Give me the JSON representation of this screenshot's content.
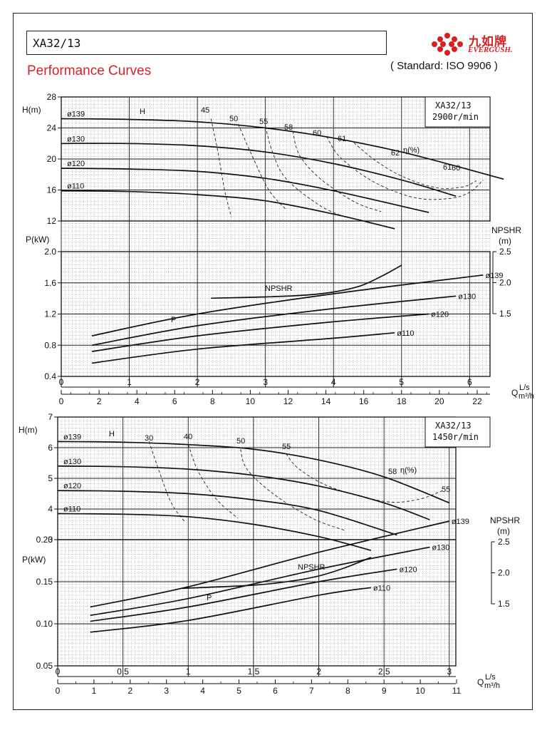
{
  "header": {
    "model": "XA32/13",
    "logo_cn": "九如牌",
    "logo_en": "EVERGUSH.",
    "title": "Performance Curves",
    "standard": "( Standard: ISO 9906 )"
  },
  "colors": {
    "title_red": "#d8202a",
    "logo_red": "#d81e1e",
    "ink": "#111111"
  },
  "chart_data": [
    {
      "type": "line",
      "title": "XA32/13",
      "subtitle": "2900r/min",
      "grid": true,
      "x_axis_ls": {
        "label": "L/s",
        "ticks": [
          "0",
          "1",
          "2",
          "3",
          "4",
          "5",
          "6"
        ],
        "range": [
          0,
          6.3
        ]
      },
      "x_axis_m3h": {
        "label": "m³/h",
        "ticks": [
          "0",
          "2",
          "4",
          "6",
          "8",
          "10",
          "12",
          "14",
          "16",
          "18",
          "20",
          "22"
        ]
      },
      "q_label": "Q",
      "head_panel": {
        "ylabel": "H(m)",
        "ylim": [
          12,
          28
        ],
        "yticks": [
          "12",
          "16",
          "20",
          "24",
          "28"
        ],
        "curve_label": "H",
        "series": [
          {
            "name": "ø139",
            "x": [
              0.0,
              1.0,
              2.0,
              3.0,
              4.0,
              5.0,
              6.0,
              6.5
            ],
            "y": [
              25.2,
              25.1,
              24.8,
              24.0,
              22.7,
              20.9,
              18.6,
              17.4
            ]
          },
          {
            "name": "ø130",
            "x": [
              0.0,
              1.0,
              2.0,
              3.0,
              4.0,
              5.0,
              5.8
            ],
            "y": [
              22.0,
              22.0,
              21.7,
              20.9,
              19.4,
              17.3,
              15.2
            ]
          },
          {
            "name": "ø120",
            "x": [
              0.0,
              1.0,
              2.0,
              3.0,
              4.0,
              5.4
            ],
            "y": [
              18.8,
              18.7,
              18.4,
              17.5,
              15.9,
              13.1
            ]
          },
          {
            "name": "ø110",
            "x": [
              0.0,
              1.0,
              2.0,
              3.0,
              4.0,
              4.9
            ],
            "y": [
              15.9,
              15.8,
              15.4,
              14.6,
              12.9,
              11.0
            ]
          }
        ],
        "efficiency_labels": [
          "45",
          "50",
          "55",
          "58",
          "60",
          "61",
          "62",
          "61",
          "60"
        ],
        "efficiency_unit": "η(%)",
        "efficiency_curves": [
          {
            "name": "45",
            "x": [
              2.2,
              2.3,
              2.4,
              2.5
            ],
            "y": [
              25.2,
              21.0,
              16.0,
              12.5
            ]
          },
          {
            "name": "50",
            "x": [
              2.6,
              2.8,
              3.05,
              3.3
            ],
            "y": [
              24.5,
              20.5,
              16.0,
              13.5
            ]
          },
          {
            "name": "55",
            "x": [
              3.0,
              3.1,
              3.3,
              3.8,
              4.2
            ],
            "y": [
              24.2,
              21.0,
              17.5,
              14.0,
              12.4
            ]
          },
          {
            "name": "58",
            "x": [
              3.4,
              3.5,
              3.8,
              4.3,
              4.7
            ],
            "y": [
              23.6,
              20.5,
              17.5,
              14.5,
              13.2
            ]
          },
          {
            "name": "60",
            "x": [
              3.9,
              4.1,
              4.6,
              5.2,
              5.7,
              6.0,
              6.2
            ],
            "y": [
              22.9,
              20.2,
              17.0,
              15.0,
              14.9,
              15.7,
              17.3
            ]
          },
          {
            "name": "61",
            "x": [
              4.3,
              4.6,
              5.0,
              5.5,
              5.9,
              6.1
            ],
            "y": [
              22.1,
              19.9,
              17.8,
              16.3,
              16.4,
              17.2
            ]
          }
        ]
      },
      "power_panel": {
        "ylabel": "P(kW)",
        "ylim": [
          0.4,
          2.0
        ],
        "yticks": [
          "0.4",
          "0.8",
          "1.2",
          "1.6",
          "2.0"
        ],
        "curve_label": "P",
        "series": [
          {
            "name": "ø139",
            "x": [
              0.45,
              2.0,
              4.0,
              6.2
            ],
            "y": [
              0.92,
              1.2,
              1.46,
              1.7
            ]
          },
          {
            "name": "ø130",
            "x": [
              0.45,
              2.0,
              4.0,
              5.8
            ],
            "y": [
              0.8,
              1.05,
              1.27,
              1.43
            ]
          },
          {
            "name": "ø120",
            "x": [
              0.45,
              2.0,
              4.0,
              5.4
            ],
            "y": [
              0.72,
              0.92,
              1.1,
              1.2
            ]
          },
          {
            "name": "ø110",
            "x": [
              0.45,
              2.0,
              4.0,
              4.9
            ],
            "y": [
              0.57,
              0.75,
              0.89,
              0.96
            ]
          }
        ]
      },
      "npsh_panel": {
        "ylabel": "NPSHR",
        "yunit": "(m)",
        "ylim": [
          1.5,
          2.5
        ],
        "yticks": [
          "1.5",
          "2.0",
          "2.5"
        ],
        "series": [
          {
            "name": "NPSHR",
            "x": [
              2.2,
              3.0,
              3.6,
              4.0,
              4.4,
              4.7,
              5.0
            ],
            "y": [
              1.75,
              1.77,
              1.8,
              1.85,
              1.95,
              2.1,
              2.28
            ]
          }
        ]
      }
    },
    {
      "type": "line",
      "title": "XA32/13",
      "subtitle": "1450r/min",
      "grid": true,
      "x_axis_ls": {
        "label": "L/s",
        "ticks": [
          "0",
          "0.5",
          "1",
          "1.5",
          "2",
          "2.5",
          "3"
        ],
        "range": [
          0,
          3.05
        ]
      },
      "x_axis_m3h": {
        "label": "m³/h",
        "ticks": [
          "0",
          "1",
          "2",
          "3",
          "4",
          "5",
          "6",
          "7",
          "8",
          "9",
          "10",
          "11"
        ]
      },
      "q_label": "Q",
      "head_panel": {
        "ylabel": "H(m)",
        "ylim": [
          3,
          7
        ],
        "yticks": [
          "3",
          "4",
          "5",
          "6",
          "7"
        ],
        "curve_label": "H",
        "series": [
          {
            "name": "ø139",
            "x": [
              0.0,
              0.5,
              1.0,
              1.5,
              2.0,
              2.5,
              3.0
            ],
            "y": [
              6.2,
              6.18,
              6.1,
              5.95,
              5.6,
              5.05,
              4.2
            ]
          },
          {
            "name": "ø130",
            "x": [
              0.0,
              0.5,
              1.0,
              1.5,
              2.0,
              2.5,
              2.85
            ],
            "y": [
              5.4,
              5.38,
              5.3,
              5.1,
              4.75,
              4.2,
              3.65
            ]
          },
          {
            "name": "ø120",
            "x": [
              0.0,
              0.5,
              1.0,
              1.5,
              2.0,
              2.6
            ],
            "y": [
              4.6,
              4.58,
              4.5,
              4.3,
              3.95,
              3.15
            ]
          },
          {
            "name": "ø110",
            "x": [
              0.0,
              0.5,
              1.0,
              1.5,
              2.0,
              2.4
            ],
            "y": [
              3.85,
              3.83,
              3.75,
              3.5,
              3.1,
              2.65
            ]
          }
        ],
        "efficiency_labels": [
          "30",
          "40",
          "50",
          "55",
          "58",
          "55"
        ],
        "efficiency_unit": "η(%)",
        "efficiency_curves": [
          {
            "name": "30",
            "x": [
              0.7,
              0.78,
              0.87,
              0.97
            ],
            "y": [
              6.2,
              5.2,
              4.2,
              3.6
            ]
          },
          {
            "name": "40",
            "x": [
              1.0,
              1.08,
              1.22,
              1.38
            ],
            "y": [
              6.1,
              5.2,
              4.3,
              3.7
            ]
          },
          {
            "name": "50",
            "x": [
              1.4,
              1.45,
              1.65,
              1.95,
              2.2
            ],
            "y": [
              5.95,
              5.3,
              4.5,
              3.7,
              3.3
            ]
          },
          {
            "name": "55",
            "x": [
              1.75,
              1.85,
              2.1,
              2.5,
              2.75,
              2.95
            ],
            "y": [
              5.8,
              5.3,
              4.7,
              4.25,
              4.3,
              4.6
            ]
          }
        ]
      },
      "power_panel": {
        "ylabel": "P(kW)",
        "ylim": [
          0.05,
          0.2
        ],
        "yticks": [
          "0.05",
          "0.10",
          "0.15",
          "0.20"
        ],
        "curve_label": "P",
        "series": [
          {
            "name": "ø139",
            "x": [
              0.25,
              1.0,
              2.0,
              3.0
            ],
            "y": [
              0.12,
              0.144,
              0.185,
              0.222
            ]
          },
          {
            "name": "ø130",
            "x": [
              0.25,
              1.0,
              2.0,
              2.85
            ],
            "y": [
              0.11,
              0.13,
              0.165,
              0.191
            ]
          },
          {
            "name": "ø120",
            "x": [
              0.25,
              1.0,
              2.0,
              2.6
            ],
            "y": [
              0.103,
              0.12,
              0.15,
              0.165
            ]
          },
          {
            "name": "ø110",
            "x": [
              0.25,
              1.0,
              2.0,
              2.4
            ],
            "y": [
              0.09,
              0.104,
              0.134,
              0.143
            ]
          }
        ]
      },
      "npsh_panel": {
        "ylabel": "NPSHR",
        "yunit": "(m)",
        "ylim": [
          1.5,
          2.5
        ],
        "yticks": [
          "1.5",
          "2.0",
          "2.5"
        ],
        "series": [
          {
            "name": "NPSHR",
            "x": [
              0.95,
              1.5,
              1.8,
              2.0,
              2.2,
              2.4
            ],
            "y": [
              1.75,
              1.8,
              1.87,
              1.95,
              2.08,
              2.25
            ]
          }
        ]
      }
    }
  ]
}
